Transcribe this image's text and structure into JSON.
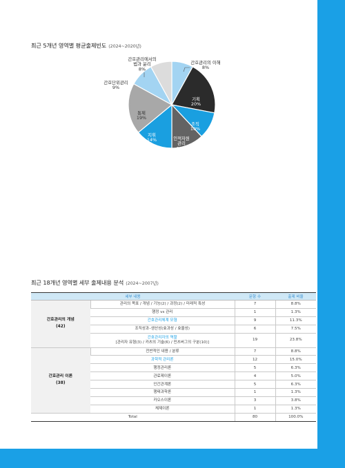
{
  "colors": {
    "accent": "#1aa0e6",
    "header_bg": "#cfe8f6"
  },
  "pie": {
    "title": "최근 5개년 영역별 평균출제빈도",
    "subtitle": "(2024~2020년)"
  },
  "chart_data": {
    "type": "pie",
    "title": "최근 5개년 영역별 평균출제빈도",
    "subtitle": "(2024~2020년)",
    "slices": [
      {
        "label": "간호관리의 이해",
        "value": 8,
        "display": "8%",
        "color": "#a3d4f2",
        "text_color": "#333333"
      },
      {
        "label": "기획",
        "value": 20,
        "display": "20%",
        "color": "#2b2b2b",
        "text_color": "#ffffff"
      },
      {
        "label": "조직",
        "value": 10,
        "display": "10%",
        "color": "#1a9fe0",
        "text_color": "#ffffff"
      },
      {
        "label": "인적자원 관리",
        "value": 12,
        "display": "12%",
        "color": "#636363",
        "text_color": "#ffffff"
      },
      {
        "label": "지휘",
        "value": 14,
        "display": "14%",
        "color": "#1a9fe0",
        "text_color": "#ffffff"
      },
      {
        "label": "통제",
        "value": 19,
        "display": "19%",
        "color": "#a8a8a8",
        "text_color": "#333333"
      },
      {
        "label": "간호단위관리",
        "value": 9,
        "display": "9%",
        "color": "#a3d4f2",
        "text_color": "#333333"
      },
      {
        "label": "간호관리에서의 법과 윤리",
        "value": 8,
        "display": "8%",
        "color": "#dcdcdc",
        "text_color": "#333333"
      }
    ]
  },
  "table": {
    "title": "최근 18개년 영역별 세부 출제내용 분석",
    "subtitle": "(2024~2007년)",
    "headers": [
      "세부 내용",
      "문항 수",
      "출제 비율"
    ],
    "groups": [
      {
        "name": "간호관리의 개념",
        "count": "(42)",
        "rows": [
          {
            "content": "관리의 목표 / 개념 / 기능(2) / 과정(2) / 미래적 특성",
            "n": "7",
            "pct": "8.8%",
            "highlight": false
          },
          {
            "content": "행정 vs 관리",
            "n": "1",
            "pct": "1.3%",
            "highlight": false
          },
          {
            "content": "간호관리체계 모형",
            "n": "9",
            "pct": "11.3%",
            "highlight": true
          },
          {
            "content": "조직성과–생산성(효과성 / 효율성)",
            "n": "6",
            "pct": "7.5%",
            "highlight": false
          },
          {
            "content": "간호관리자의 역할",
            "content2": "[관리자 유형(3) / 카츠의 기술(6) / 민츠버그의 구분(10)]",
            "n": "19",
            "pct": "23.8%",
            "highlight": true
          }
        ]
      },
      {
        "name": "간호관리 이론",
        "count": "(38)",
        "rows": [
          {
            "content": "전반적인 내용 / 분류",
            "n": "7",
            "pct": "8.8%",
            "highlight": false
          },
          {
            "content": "과학적 관리론",
            "n": "12",
            "pct": "15.0%",
            "highlight": true
          },
          {
            "content": "행정관리론",
            "n": "5",
            "pct": "6.3%",
            "highlight": false
          },
          {
            "content": "관료제이론",
            "n": "4",
            "pct": "5.0%",
            "highlight": false
          },
          {
            "content": "인간관계론",
            "n": "5",
            "pct": "6.3%",
            "highlight": false
          },
          {
            "content": "행태과학론",
            "n": "1",
            "pct": "1.3%",
            "highlight": false
          },
          {
            "content": "카오스이론",
            "n": "3",
            "pct": "3.8%",
            "highlight": false
          },
          {
            "content": "체제이론",
            "n": "1",
            "pct": "1.3%",
            "highlight": false
          }
        ]
      }
    ],
    "total": {
      "label": "Total",
      "n": "80",
      "pct": "100.0%"
    }
  }
}
